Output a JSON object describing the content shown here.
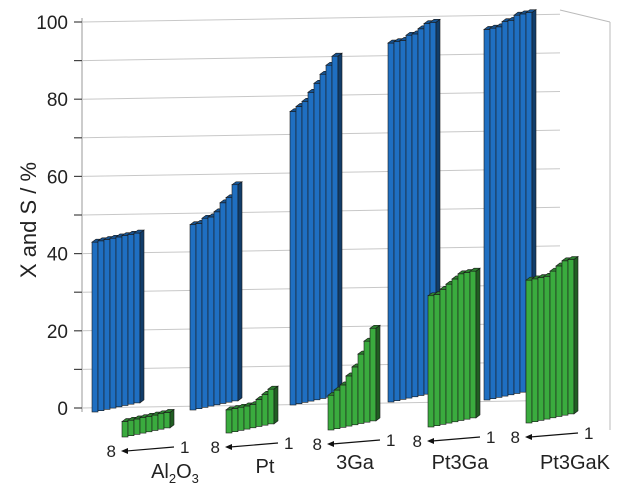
{
  "chart_data": {
    "type": "bar",
    "ylabel": "X and S / %",
    "ylim": [
      0,
      100
    ],
    "yticks": [
      "0",
      "20",
      "40",
      "60",
      "80",
      "100"
    ],
    "categories": [
      "Al2O3",
      "Pt",
      "3Ga",
      "Pt3Ga",
      "Pt3GaK"
    ],
    "category_labels": [
      {
        "main": "Al",
        "sub1": "2",
        "mid": "O",
        "sub2": "3"
      },
      {
        "main": "Pt"
      },
      {
        "main": "3Ga"
      },
      {
        "main": "Pt3Ga"
      },
      {
        "main": "Pt3GaK"
      }
    ],
    "run_axis": {
      "start_label": "8",
      "end_label": "1"
    },
    "grid": true,
    "series": [
      {
        "color": "#1f6fc1",
        "values": [
          [
            44,
            44,
            44,
            44,
            44,
            44,
            44,
            44
          ],
          [
            48,
            48,
            49,
            49,
            50,
            52,
            53,
            56
          ],
          [
            76,
            77,
            78,
            80,
            82,
            84,
            86,
            88
          ],
          [
            93,
            93,
            93,
            94,
            94,
            95,
            96,
            96
          ],
          [
            96,
            96,
            96,
            97,
            97,
            98,
            98,
            98
          ]
        ]
      },
      {
        "color": "#3aab3e",
        "values": [
          [
            4,
            4,
            4,
            4,
            4,
            4,
            4,
            4
          ],
          [
            6,
            6,
            6,
            6,
            6,
            7,
            8,
            9
          ],
          [
            9,
            10,
            11,
            13,
            15,
            18,
            21,
            24
          ],
          [
            34,
            34,
            35,
            36,
            37,
            38,
            38,
            38
          ],
          [
            37,
            37,
            37,
            37,
            38,
            39,
            40,
            40
          ]
        ]
      }
    ]
  }
}
